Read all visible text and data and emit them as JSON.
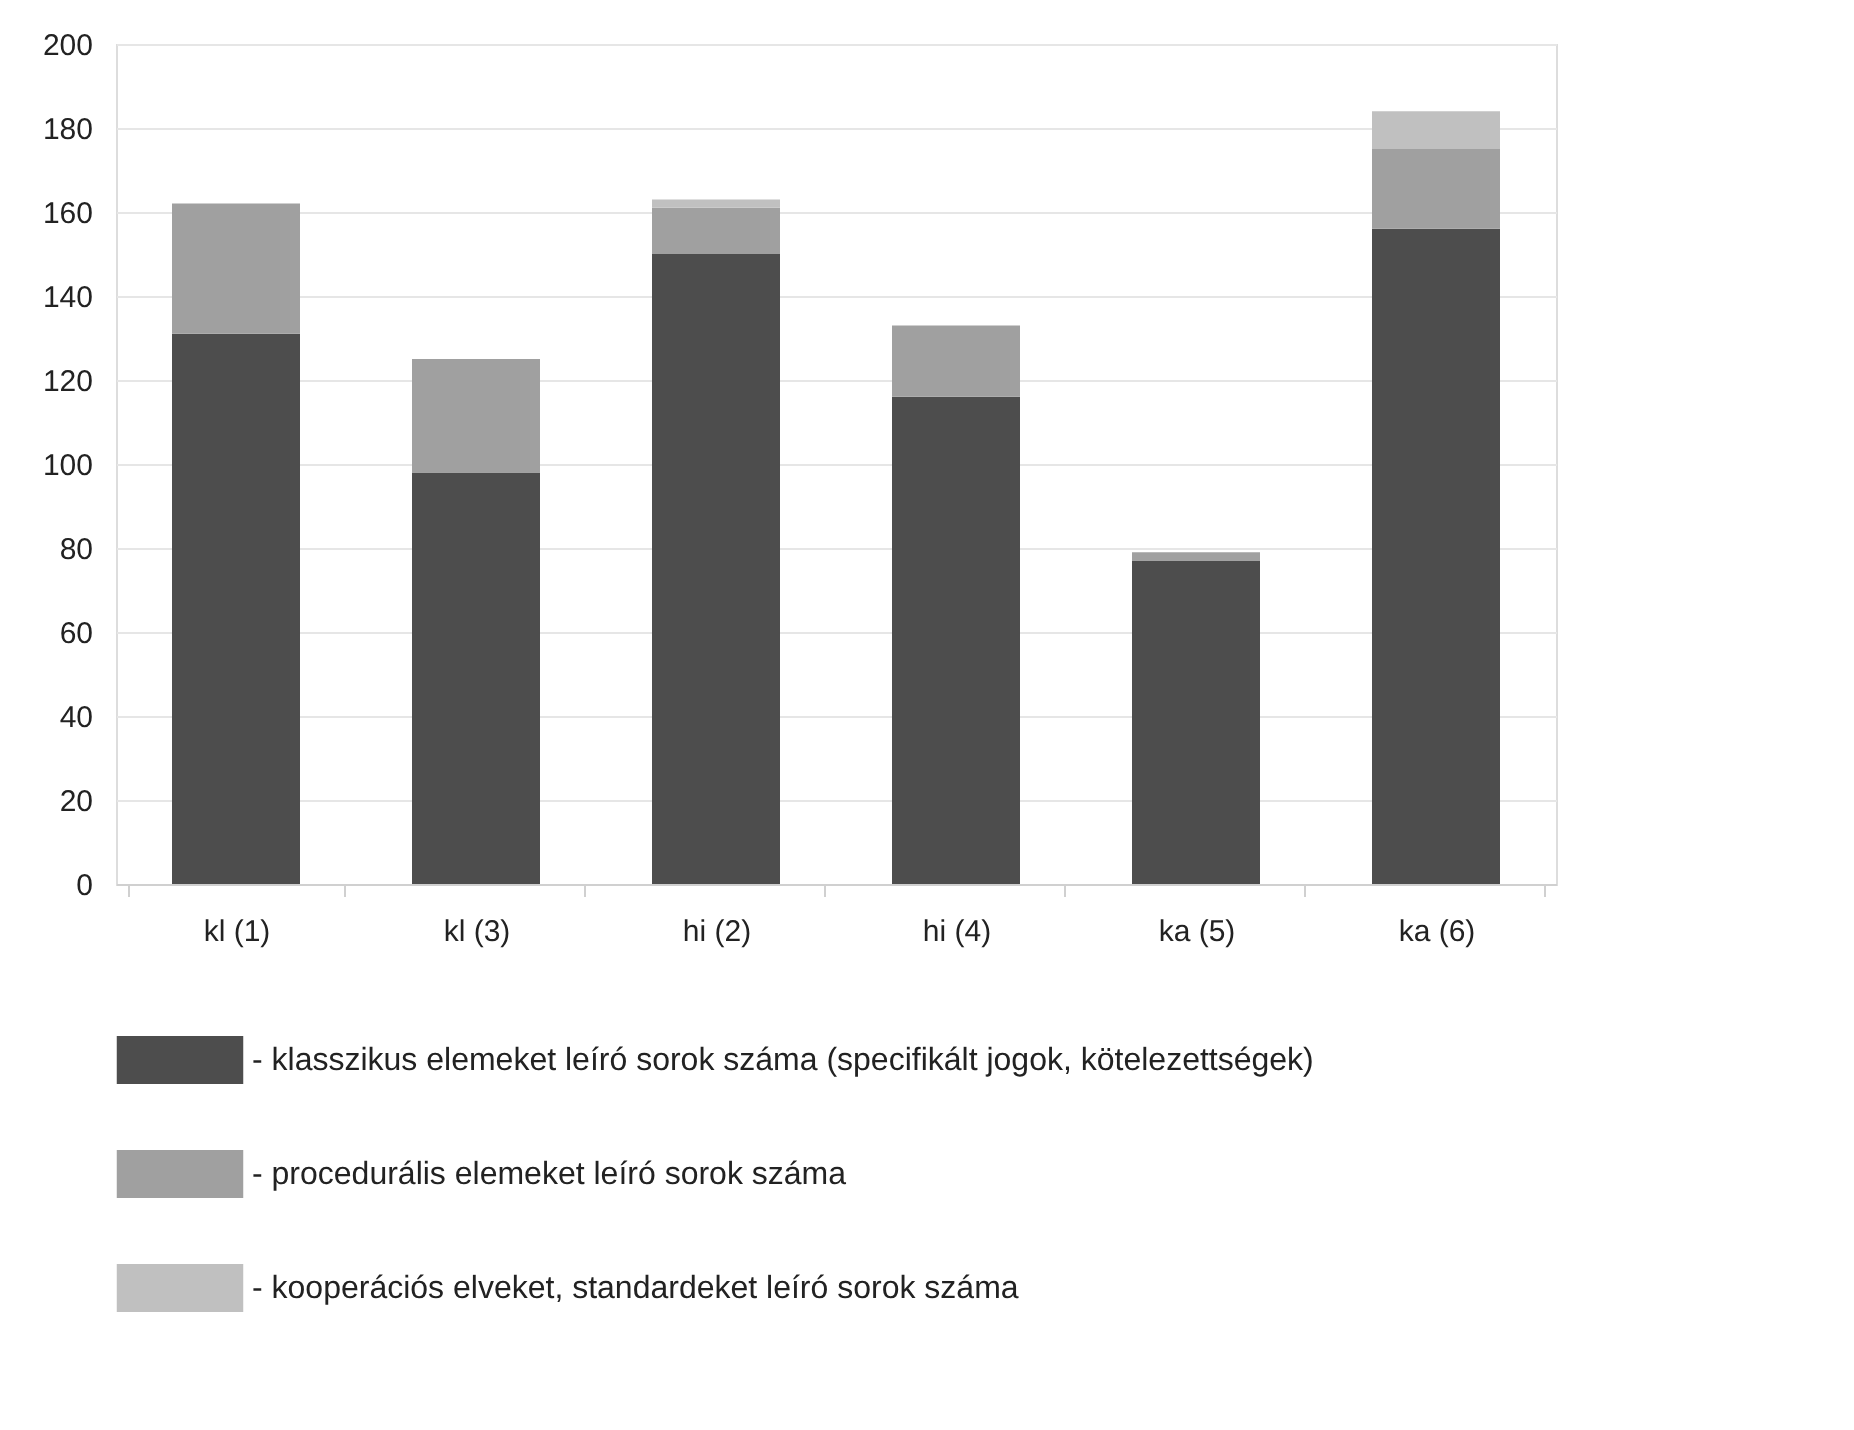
{
  "chart_data": {
    "type": "bar",
    "stacked": true,
    "categories": [
      "kl (1)",
      "kl (3)",
      "hi (2)",
      "hi (4)",
      "ka (5)",
      "ka (6)"
    ],
    "series": [
      {
        "name": "- klasszikus elemeket leíró sorok száma (specifikált jogok, kötelezettségek)",
        "color": "#4d4d4d",
        "values": [
          131,
          98,
          150,
          116,
          77,
          156
        ]
      },
      {
        "name": "- procedurális elemeket leíró sorok száma",
        "color": "#a0a0a0",
        "values": [
          31,
          27,
          11,
          17,
          2,
          19
        ]
      },
      {
        "name": "- kooperációs elveket, standardeket leíró sorok száma",
        "color": "#c0c0c0",
        "values": [
          0,
          0,
          2,
          0,
          0,
          9
        ]
      }
    ],
    "ylim": [
      0,
      200
    ],
    "yticks": [
      0,
      20,
      40,
      60,
      80,
      100,
      120,
      140,
      160,
      180,
      200
    ],
    "grid": "y",
    "legend": "bottom"
  }
}
